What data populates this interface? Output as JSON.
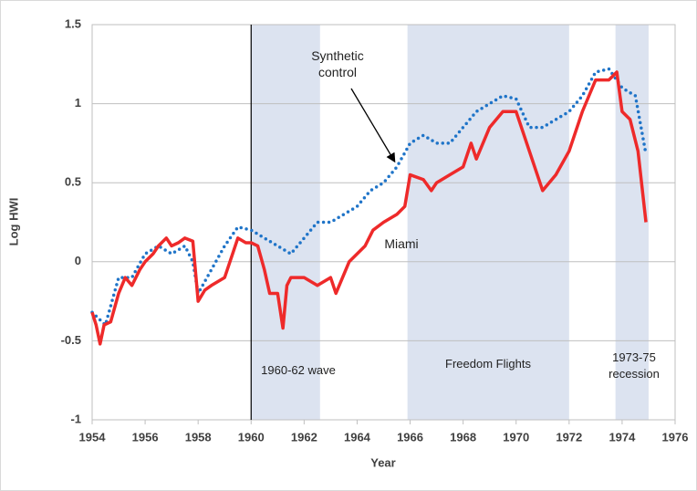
{
  "chart_data": {
    "type": "line",
    "x_label": "Year",
    "y_label": "Log HWI",
    "xlim": [
      1954,
      1976
    ],
    "xticks": [
      1954,
      1956,
      1958,
      1960,
      1962,
      1964,
      1966,
      1968,
      1970,
      1972,
      1974,
      1976
    ],
    "ylim": [
      -1,
      1.5
    ],
    "yticks": [
      -1,
      -0.5,
      0,
      0.5,
      1,
      1.5
    ],
    "grid": true,
    "vline": 1960,
    "shaded_periods": [
      {
        "start": 1960,
        "end": 1962.6,
        "label": "1960-62 wave",
        "color": "#dce3f0"
      },
      {
        "start": 1965.9,
        "end": 1972,
        "label": "Freedom Flights",
        "color": "#dce3f0"
      },
      {
        "start": 1973.75,
        "end": 1975,
        "label": "1973-75 recession",
        "color": "#dce3f0"
      }
    ],
    "series": [
      {
        "name": "Miami",
        "color": "#ee2a2a",
        "style": "solid",
        "x": [
          1954,
          1954.15,
          1954.3,
          1954.45,
          1954.7,
          1955,
          1955.25,
          1955.5,
          1955.8,
          1956,
          1956.3,
          1956.5,
          1956.8,
          1957,
          1957.25,
          1957.5,
          1957.8,
          1958,
          1958.25,
          1958.5,
          1959,
          1959.3,
          1959.5,
          1959.8,
          1960,
          1960.25,
          1960.5,
          1960.7,
          1961,
          1961.2,
          1961.35,
          1961.5,
          1962,
          1962.5,
          1963,
          1963.2,
          1963.7,
          1964,
          1964.3,
          1964.6,
          1965,
          1965.5,
          1965.8,
          1966,
          1966.5,
          1966.8,
          1967,
          1967.5,
          1968,
          1968.3,
          1968.5,
          1969,
          1969.5,
          1970,
          1970.5,
          1971,
          1971.5,
          1972,
          1972.5,
          1973,
          1973.5,
          1973.8,
          1974,
          1974.3,
          1974.6,
          1974.9
        ],
        "values": [
          -0.32,
          -0.4,
          -0.52,
          -0.4,
          -0.38,
          -0.2,
          -0.1,
          -0.15,
          -0.05,
          0,
          0.05,
          0.1,
          0.15,
          0.1,
          0.12,
          0.15,
          0.13,
          -0.25,
          -0.18,
          -0.15,
          -0.1,
          0.05,
          0.15,
          0.12,
          0.12,
          0.1,
          -0.05,
          -0.2,
          -0.2,
          -0.42,
          -0.15,
          -0.1,
          -0.1,
          -0.15,
          -0.1,
          -0.2,
          0,
          0.05,
          0.1,
          0.2,
          0.25,
          0.3,
          0.35,
          0.55,
          0.52,
          0.45,
          0.5,
          0.55,
          0.6,
          0.75,
          0.65,
          0.85,
          0.95,
          0.95,
          0.7,
          0.45,
          0.55,
          0.7,
          0.95,
          1.15,
          1.15,
          1.2,
          0.95,
          0.9,
          0.7,
          0.25
        ]
      },
      {
        "name": "Synthetic control",
        "color": "#1f74c8",
        "style": "dotted",
        "x": [
          1954,
          1954.5,
          1955,
          1955.5,
          1956,
          1956.5,
          1957,
          1957.5,
          1957.8,
          1958,
          1958.5,
          1959,
          1959.5,
          1960,
          1960.5,
          1961,
          1961.5,
          1962,
          1962.5,
          1963,
          1963.5,
          1964,
          1964.5,
          1965,
          1965.5,
          1966,
          1966.5,
          1967,
          1967.5,
          1968,
          1968.5,
          1969,
          1969.5,
          1970,
          1970.5,
          1971,
          1971.5,
          1972,
          1972.5,
          1973,
          1973.5,
          1974,
          1974.5,
          1974.9
        ],
        "values": [
          -0.32,
          -0.4,
          -0.1,
          -0.1,
          0.05,
          0.1,
          0.05,
          0.1,
          0,
          -0.2,
          -0.05,
          0.1,
          0.22,
          0.2,
          0.15,
          0.1,
          0.05,
          0.15,
          0.25,
          0.25,
          0.3,
          0.35,
          0.45,
          0.5,
          0.6,
          0.75,
          0.8,
          0.75,
          0.75,
          0.85,
          0.95,
          1.0,
          1.05,
          1.03,
          0.85,
          0.85,
          0.9,
          0.95,
          1.05,
          1.2,
          1.22,
          1.1,
          1.05,
          0.68
        ]
      }
    ]
  }
}
